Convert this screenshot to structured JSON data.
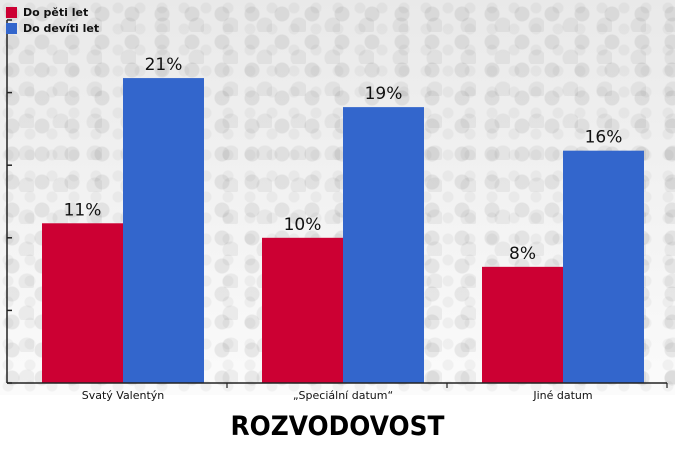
{
  "colors": {
    "series_1": "#cc0033",
    "series_2": "#3366cc",
    "axis": "#222222"
  },
  "chart_data": {
    "type": "bar",
    "title": "ROZVODOVOST",
    "categories": [
      "Svatý Valentýn",
      "„Speciální datum“",
      "Jiné datum"
    ],
    "series": [
      {
        "name": "Do pěti let",
        "values": [
          11,
          10,
          8
        ],
        "labels": [
          "11%",
          "10%",
          "8%"
        ]
      },
      {
        "name": "Do devíti let",
        "values": [
          21,
          19,
          16
        ],
        "labels": [
          "21%",
          "19%",
          "16%"
        ]
      }
    ],
    "xlabel": "",
    "ylabel": "",
    "ylim": [
      0,
      25
    ],
    "y_ticks": [
      0,
      5,
      10,
      15,
      20,
      25
    ],
    "y_tick_labels_shown": false,
    "grid": false,
    "legend_position": "top-left"
  }
}
